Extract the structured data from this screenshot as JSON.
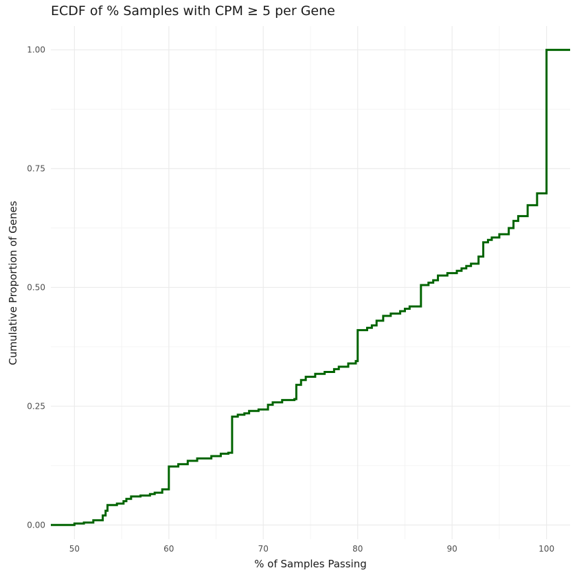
{
  "chart_data": {
    "type": "line",
    "title": "ECDF of % Samples with CPM ≥ 5 per Gene",
    "xlabel": "% of Samples Passing",
    "ylabel": "Cumulative Proportion of Genes",
    "xlim": [
      47.5,
      102.5
    ],
    "ylim": [
      -0.03,
      1.05
    ],
    "x_ticks": [
      50,
      60,
      70,
      80,
      90,
      100
    ],
    "y_ticks": [
      0.0,
      0.25,
      0.5,
      0.75,
      1.0
    ],
    "x_tick_labels": [
      "50",
      "60",
      "70",
      "80",
      "90",
      "100"
    ],
    "y_tick_labels": [
      "0.00",
      "0.25",
      "0.50",
      "0.75",
      "1.00"
    ],
    "grid": true,
    "line_color": "#006400",
    "step": true,
    "series": [
      {
        "x": [
          47.5,
          50.0,
          51.0,
          52.0,
          53.0,
          53.3,
          53.5,
          54.5,
          55.2,
          55.5,
          56.0,
          57.0,
          58.0,
          58.5,
          59.3,
          60.0,
          61.0,
          62.0,
          63.0,
          64.5,
          65.5,
          66.3,
          66.7,
          67.3,
          68.0,
          68.5,
          69.5,
          70.5,
          71.0,
          72.0,
          73.3,
          73.5,
          74.0,
          74.5,
          75.5,
          76.5,
          77.5,
          78.0,
          79.0,
          79.8,
          80.0,
          81.0,
          81.5,
          82.0,
          82.7,
          83.5,
          84.5,
          85.0,
          85.5,
          86.7,
          87.5,
          88.0,
          88.5,
          89.5,
          90.5,
          91.0,
          91.5,
          92.0,
          92.8,
          93.3,
          93.8,
          94.2,
          95.0,
          96.0,
          96.5,
          97.0,
          98.0,
          99.0,
          100.0,
          102.5
        ],
        "y": [
          0.0,
          0.003,
          0.005,
          0.01,
          0.02,
          0.03,
          0.042,
          0.045,
          0.05,
          0.055,
          0.06,
          0.062,
          0.065,
          0.068,
          0.075,
          0.123,
          0.128,
          0.135,
          0.14,
          0.145,
          0.15,
          0.152,
          0.228,
          0.232,
          0.235,
          0.24,
          0.243,
          0.253,
          0.258,
          0.263,
          0.265,
          0.295,
          0.305,
          0.312,
          0.318,
          0.322,
          0.328,
          0.333,
          0.34,
          0.345,
          0.41,
          0.415,
          0.42,
          0.43,
          0.44,
          0.445,
          0.45,
          0.455,
          0.46,
          0.505,
          0.51,
          0.515,
          0.525,
          0.53,
          0.535,
          0.54,
          0.545,
          0.55,
          0.565,
          0.595,
          0.6,
          0.605,
          0.612,
          0.625,
          0.64,
          0.65,
          0.673,
          0.698,
          1.0,
          1.0
        ]
      }
    ]
  }
}
